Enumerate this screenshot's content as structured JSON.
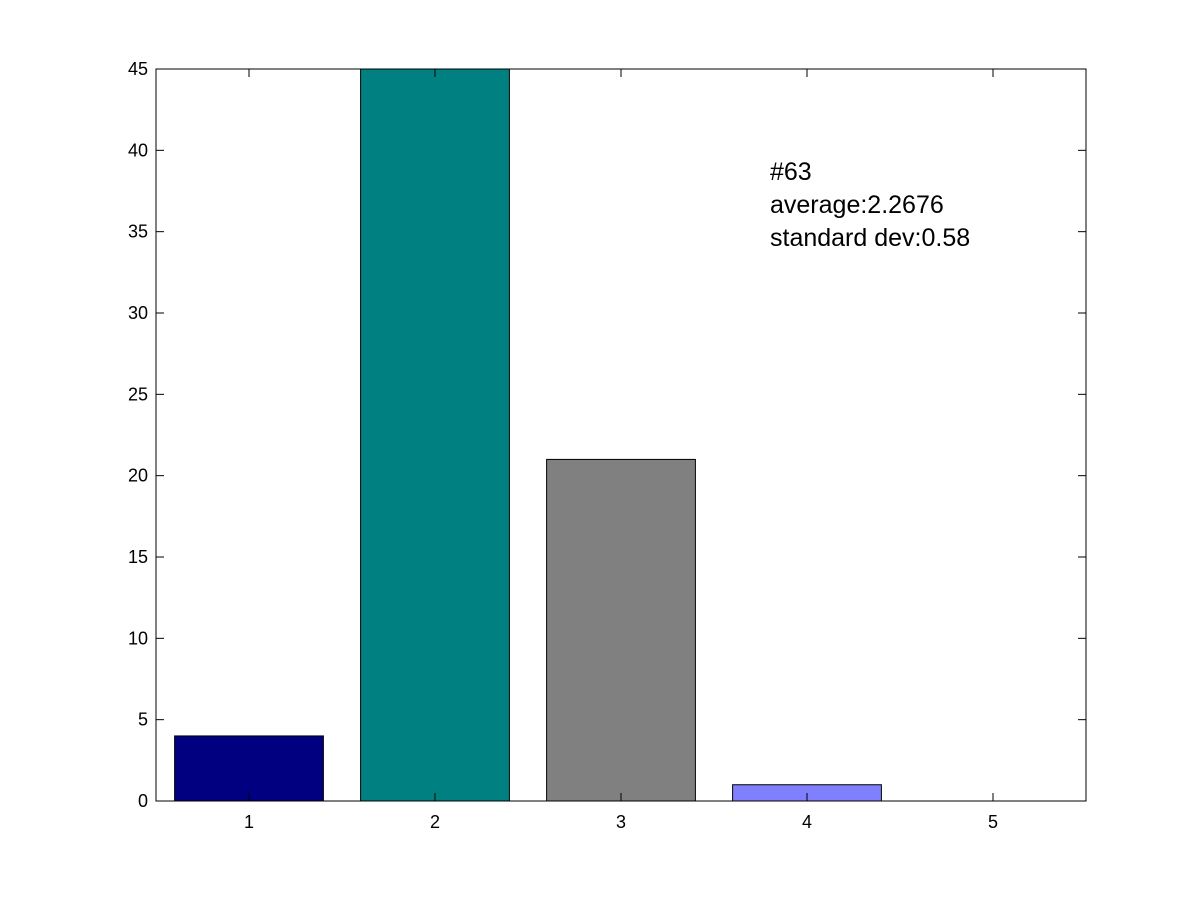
{
  "chart_data": {
    "type": "bar",
    "title": "",
    "xlabel": "",
    "ylabel": "",
    "categories": [
      "1",
      "2",
      "3",
      "4",
      "5"
    ],
    "values": [
      4,
      45,
      21,
      1,
      0
    ],
    "bar_colors": [
      "#000080",
      "#008080",
      "#808080",
      "#8080ff",
      "#ff8080"
    ],
    "xlim": [
      0.5,
      5.5
    ],
    "ylim": [
      0,
      45
    ],
    "x_ticks": [
      1,
      2,
      3,
      4,
      5
    ],
    "x_tick_labels": [
      "1",
      "2",
      "3",
      "4",
      "5"
    ],
    "y_ticks": [
      0,
      5,
      10,
      15,
      20,
      25,
      30,
      35,
      40,
      45
    ],
    "y_tick_labels": [
      "0",
      "5",
      "10",
      "15",
      "20",
      "25",
      "30",
      "35",
      "40",
      "45"
    ],
    "grid": false,
    "legend": null,
    "annotation": {
      "lines": [
        "#63",
        "average:2.2676",
        "standard dev:0.58"
      ]
    }
  }
}
